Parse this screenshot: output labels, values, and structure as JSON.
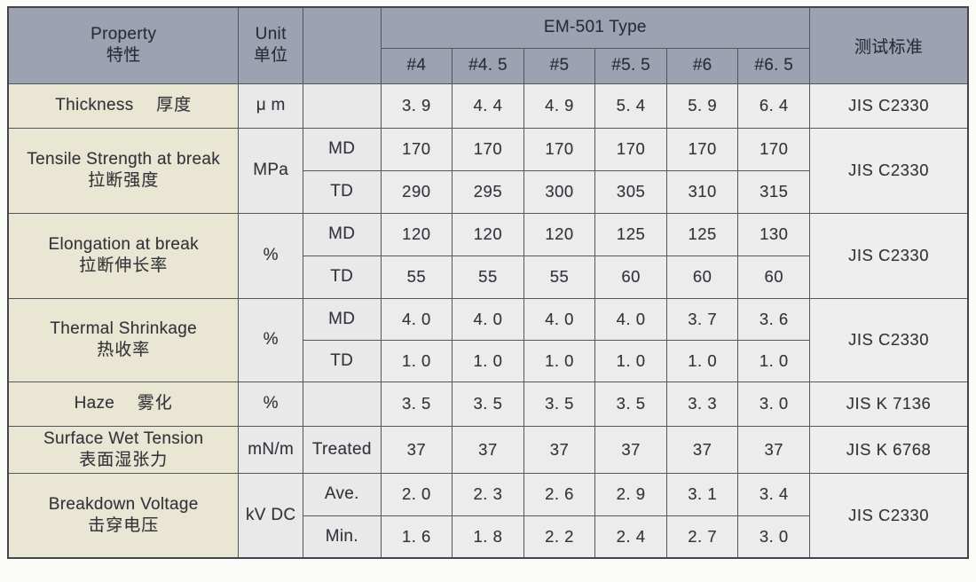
{
  "header": {
    "property": {
      "en": "Property",
      "zh": "特性"
    },
    "unit": {
      "en": "Unit",
      "zh": "单位"
    },
    "type_group_label": "EM-501 Type",
    "type_columns": [
      "#4",
      "#4. 5",
      "#5",
      "#5. 5",
      "#6",
      "#6. 5"
    ],
    "standard_label": "测试标准"
  },
  "rows": [
    {
      "property": {
        "en": "Thickness",
        "zh": "厚度"
      },
      "unit": "μ m",
      "subrows": [
        {
          "label": "",
          "values": [
            "3. 9",
            "4. 4",
            "4. 9",
            "5. 4",
            "5. 9",
            "6. 4"
          ]
        }
      ],
      "standard": "JIS C2330"
    },
    {
      "property": {
        "en": "Tensile Strength at break",
        "zh": "拉断强度"
      },
      "unit": "MPa",
      "subrows": [
        {
          "label": "MD",
          "values": [
            "170",
            "170",
            "170",
            "170",
            "170",
            "170"
          ]
        },
        {
          "label": "TD",
          "values": [
            "290",
            "295",
            "300",
            "305",
            "310",
            "315"
          ]
        }
      ],
      "standard": "JIS C2330"
    },
    {
      "property": {
        "en": "Elongation at break",
        "zh": "拉断伸长率"
      },
      "unit": "%",
      "subrows": [
        {
          "label": "MD",
          "values": [
            "120",
            "120",
            "120",
            "125",
            "125",
            "130"
          ]
        },
        {
          "label": "TD",
          "values": [
            "55",
            "55",
            "55",
            "60",
            "60",
            "60"
          ]
        }
      ],
      "standard": "JIS C2330"
    },
    {
      "property": {
        "en": "Thermal Shrinkage",
        "zh": "热收率"
      },
      "unit": "%",
      "subrows": [
        {
          "label": "MD",
          "values": [
            "4. 0",
            "4. 0",
            "4. 0",
            "4. 0",
            "3. 7",
            "3. 6"
          ]
        },
        {
          "label": "TD",
          "values": [
            "1. 0",
            "1. 0",
            "1. 0",
            "1. 0",
            "1. 0",
            "1. 0"
          ]
        }
      ],
      "standard": "JIS C2330"
    },
    {
      "property": {
        "en": "Haze",
        "zh": "雾化"
      },
      "unit": "%",
      "subrows": [
        {
          "label": "",
          "values": [
            "3. 5",
            "3. 5",
            "3. 5",
            "3. 5",
            "3. 3",
            "3. 0"
          ]
        }
      ],
      "standard": "JIS K 7136"
    },
    {
      "property": {
        "en": "Surface Wet Tension",
        "zh": "表面湿张力"
      },
      "unit": "mN/m",
      "subrows": [
        {
          "label": "Treated",
          "values": [
            "37",
            "37",
            "37",
            "37",
            "37",
            "37"
          ]
        }
      ],
      "standard": "JIS K 6768"
    },
    {
      "property": {
        "en": "Breakdown Voltage",
        "zh": "击穿电压"
      },
      "unit": "kV DC",
      "subrows": [
        {
          "label": "Ave.",
          "values": [
            "2. 0",
            "2. 3",
            "2. 6",
            "2. 9",
            "3. 1",
            "3. 4"
          ]
        },
        {
          "label": "Min.",
          "values": [
            "1. 6",
            "1. 8",
            "2. 2",
            "2. 4",
            "2. 7",
            "3. 0"
          ]
        }
      ],
      "standard": "JIS C2330"
    }
  ],
  "colors": {
    "header_bg": "#9da2b2",
    "property_column_bg": "#e9e7d4",
    "cell_bg": "#ececed",
    "border": "#54565c",
    "text": "#33353b",
    "page_bg": "#fbfbf7"
  }
}
